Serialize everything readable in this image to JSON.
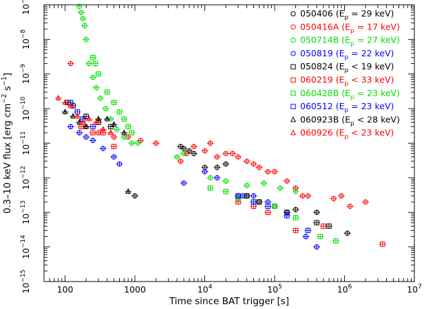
{
  "chart_data": {
    "type": "scatter",
    "xscale": "log",
    "yscale": "log",
    "xlim": [
      50,
      10000000
    ],
    "ylim": [
      1e-15,
      1e-07
    ],
    "xlabel": "Time since BAT trigger [s]",
    "ylabel_parts": {
      "main": "0.3–10 keV flux [erg cm",
      "exp1": "−2",
      "mid": " s",
      "exp2": "−1",
      "end": "]"
    },
    "xticks": [
      {
        "value": 100,
        "label": "100"
      },
      {
        "value": 1000,
        "label": "1000"
      },
      {
        "value": 10000,
        "base": "10",
        "exp": "4"
      },
      {
        "value": 100000,
        "base": "10",
        "exp": "5"
      },
      {
        "value": 1000000,
        "base": "10",
        "exp": "6"
      },
      {
        "value": 10000000,
        "base": "10",
        "exp": "7"
      }
    ],
    "yticks": [
      {
        "value": 1e-15,
        "base": "10",
        "exp": "−15"
      },
      {
        "value": 1e-14,
        "base": "10",
        "exp": "−14"
      },
      {
        "value": 1e-13,
        "base": "10",
        "exp": "−13"
      },
      {
        "value": 1e-12,
        "base": "10",
        "exp": "−12"
      },
      {
        "value": 1e-11,
        "base": "10",
        "exp": "−11"
      },
      {
        "value": 1e-10,
        "base": "10",
        "exp": "−10"
      },
      {
        "value": 1e-09,
        "base": "10",
        "exp": "−9"
      },
      {
        "value": 1e-08,
        "base": "10",
        "exp": "−8"
      },
      {
        "value": 1e-07,
        "base": "10",
        "exp": "−7"
      }
    ],
    "grid": false,
    "legend_position": "top-right",
    "series": [
      {
        "name": "050406",
        "ep_rel": "=",
        "ep_value": "29 keV",
        "color": "#000000",
        "marker": "circle",
        "points": [
          [
            1000,
            3e-13
          ],
          [
            4500,
            8e-12
          ],
          [
            5000,
            7e-12
          ],
          [
            6000,
            6e-12
          ],
          [
            7000,
            5e-12
          ],
          [
            10000,
            2e-12
          ],
          [
            15000,
            2e-12
          ],
          [
            20000,
            2.5e-12
          ],
          [
            30000,
            3e-13
          ],
          [
            40000,
            3e-13
          ],
          [
            60000,
            2e-13
          ],
          [
            100000,
            1.5e-13
          ],
          [
            200000,
            1.2e-13
          ],
          [
            400000,
            1e-13
          ],
          [
            1100000,
            2.5e-14
          ]
        ]
      },
      {
        "name": "050416A",
        "ep_rel": "=",
        "ep_value": "17 keV",
        "color": "#ff0000",
        "marker": "circle",
        "points": [
          [
            120,
            2e-09
          ],
          [
            200,
            3e-11
          ],
          [
            300,
            2e-11
          ],
          [
            500,
            1.5e-11
          ],
          [
            800,
            1.5e-11
          ],
          [
            1200,
            1.2e-11
          ],
          [
            2000,
            1e-11
          ],
          [
            4500,
            3e-12
          ],
          [
            5500,
            5e-12
          ],
          [
            7000,
            8e-12
          ],
          [
            10000,
            6e-12
          ],
          [
            12000,
            1e-11
          ],
          [
            15000,
            4e-12
          ],
          [
            20000,
            5e-12
          ],
          [
            25000,
            5e-12
          ],
          [
            30000,
            4e-12
          ],
          [
            40000,
            3e-12
          ],
          [
            50000,
            2.5e-12
          ],
          [
            60000,
            2e-12
          ],
          [
            80000,
            1.5e-12
          ],
          [
            100000,
            1.5e-12
          ],
          [
            150000,
            8e-13
          ],
          [
            200000,
            5e-13
          ],
          [
            250000,
            3e-13
          ],
          [
            300000,
            3e-13
          ],
          [
            700000,
            2.5e-13
          ],
          [
            900000,
            3e-13
          ],
          [
            1200000,
            1.5e-13
          ],
          [
            2000000,
            2e-13
          ]
        ]
      },
      {
        "name": "050714B",
        "ep_rel": "=",
        "ep_value": "27 keV",
        "color": "#00dd00",
        "marker": "circle",
        "points": [
          [
            160,
            9e-08
          ],
          [
            170,
            6e-08
          ],
          [
            180,
            4e-08
          ],
          [
            190,
            2.5e-08
          ],
          [
            200,
            1e-08
          ],
          [
            220,
            2e-09
          ],
          [
            250,
            8e-10
          ],
          [
            280,
            4e-10
          ],
          [
            320,
            2e-10
          ],
          [
            380,
            1e-10
          ],
          [
            450,
            5e-11
          ],
          [
            550,
            2.5e-11
          ],
          [
            700,
            1.5e-11
          ],
          [
            900,
            1e-11
          ],
          [
            1100,
            1e-11
          ],
          [
            4000,
            4e-12
          ],
          [
            5000,
            5e-12
          ],
          [
            12000,
            1e-12
          ],
          [
            20000,
            8e-13
          ],
          [
            40000,
            6e-13
          ],
          [
            70000,
            7e-13
          ],
          [
            120000,
            5e-13
          ],
          [
            200000,
            4e-13
          ]
        ]
      },
      {
        "name": "050819",
        "ep_rel": "=",
        "ep_value": "22 keV",
        "color": "#0000ff",
        "marker": "circle",
        "points": [
          [
            120,
            3e-11
          ],
          [
            160,
            2e-11
          ],
          [
            200,
            1.5e-11
          ],
          [
            250,
            1.2e-11
          ],
          [
            350,
            7e-12
          ],
          [
            500,
            4e-12
          ],
          [
            600,
            2.5e-12
          ],
          [
            5000,
            7e-13
          ],
          [
            10000,
            1.5e-12
          ],
          [
            15000,
            1e-12
          ],
          [
            35000,
            3e-13
          ],
          [
            50000,
            3e-13
          ],
          [
            80000,
            2e-13
          ],
          [
            150000,
            1e-13
          ],
          [
            280000,
            2e-14
          ],
          [
            400000,
            1e-14
          ]
        ]
      },
      {
        "name": "050824",
        "ep_rel": "<",
        "ep_value": "19 keV",
        "color": "#000000",
        "marker": "square",
        "points": [
          [
            110,
            1.5e-10
          ],
          [
            130,
            1.2e-10
          ],
          [
            200,
            6e-11
          ],
          [
            300,
            4e-11
          ],
          [
            450,
            3e-11
          ],
          [
            40000,
            3e-13
          ],
          [
            60000,
            2e-13
          ],
          [
            150000,
            1e-13
          ],
          [
            400000,
            5e-14
          ],
          [
            600000,
            4e-14
          ]
        ]
      },
      {
        "name": "060219",
        "ep_rel": "<",
        "ep_value": "33 keV",
        "color": "#ff0000",
        "marker": "square",
        "points": [
          [
            170,
            3e-11
          ],
          [
            250,
            2e-11
          ],
          [
            350,
            2e-11
          ],
          [
            500,
            8e-12
          ],
          [
            30000,
            2e-13
          ],
          [
            50000,
            1.5e-13
          ],
          [
            80000,
            1e-13
          ],
          [
            200000,
            3e-14
          ],
          [
            500000,
            4e-14
          ],
          [
            3500000,
            1.2e-14
          ]
        ]
      },
      {
        "name": "060428B",
        "ep_rel": "=",
        "ep_value": "23 keV",
        "color": "#00dd00",
        "marker": "square",
        "points": [
          [
            250,
            3e-09
          ],
          [
            270,
            2e-09
          ],
          [
            300,
            1e-09
          ],
          [
            400,
            3e-10
          ],
          [
            500,
            1.5e-10
          ],
          [
            600,
            8e-11
          ],
          [
            700,
            5e-11
          ],
          [
            800,
            3e-11
          ],
          [
            900,
            2e-11
          ],
          [
            12000,
            5e-13
          ],
          [
            20000,
            4e-13
          ],
          [
            30000,
            2.5e-13
          ],
          [
            50000,
            2e-13
          ],
          [
            100000,
            1.5e-13
          ],
          [
            200000,
            7e-14
          ],
          [
            450000,
            2e-14
          ],
          [
            750000,
            1.5e-14
          ]
        ]
      },
      {
        "name": "060512",
        "ep_rel": "=",
        "ep_value": "23 keV",
        "color": "#0000ff",
        "marker": "square",
        "points": [
          [
            120,
            1.5e-10
          ],
          [
            150,
            8e-11
          ],
          [
            180,
            5e-11
          ],
          [
            250,
            3e-11
          ],
          [
            30000,
            3e-13
          ],
          [
            50000,
            2e-13
          ],
          [
            80000,
            1.5e-13
          ],
          [
            150000,
            8e-14
          ],
          [
            300000,
            3e-14
          ]
        ]
      },
      {
        "name": "060923B",
        "ep_rel": "<",
        "ep_value": "28 keV",
        "color": "#000000",
        "marker": "triangle",
        "points": [
          [
            100,
            8e-11
          ],
          [
            130,
            6e-11
          ],
          [
            160,
            4e-11
          ],
          [
            200,
            3e-11
          ],
          [
            300,
            5e-11
          ],
          [
            400,
            5e-11
          ],
          [
            500,
            3.5e-11
          ],
          [
            700,
            2e-11
          ],
          [
            800,
            4e-13
          ]
        ]
      },
      {
        "name": "060926",
        "ep_rel": "<",
        "ep_value": "23 keV",
        "color": "#ff0000",
        "marker": "triangle",
        "points": [
          [
            80,
            2e-10
          ],
          [
            100,
            1.5e-10
          ],
          [
            120,
            1.2e-10
          ],
          [
            150,
            6e-11
          ],
          [
            180,
            4e-11
          ],
          [
            220,
            5e-11
          ],
          [
            280,
            4e-11
          ],
          [
            350,
            2.5e-11
          ],
          [
            450,
            2e-11
          ]
        ]
      }
    ]
  }
}
